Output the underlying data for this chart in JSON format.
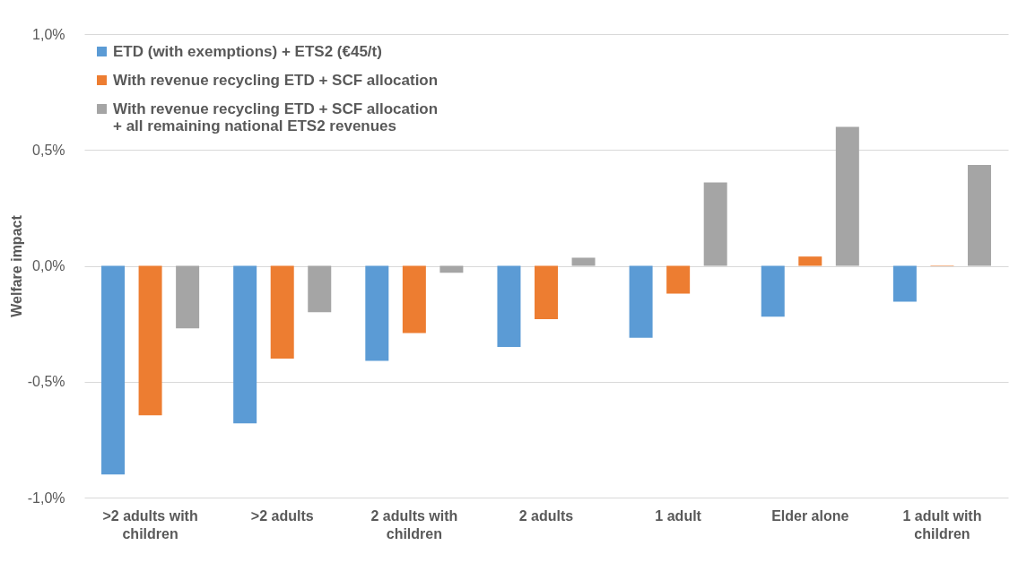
{
  "chart_data": {
    "type": "bar",
    "ylabel": "Welfare impact",
    "categories": [
      ">2 adults with\nchildren",
      ">2 adults",
      "2 adults with\nchildren",
      "2 adults",
      "1 adult",
      "Elder alone",
      "1 adult with\nchildren"
    ],
    "series": [
      {
        "name": "ETD (with exemptions) + ETS2 (€45/t)",
        "color": "#5b9bd5",
        "values": [
          -0.9,
          -0.68,
          -0.41,
          -0.35,
          -0.31,
          -0.22,
          -0.155
        ]
      },
      {
        "name": "With revenue recycling ETD + SCF allocation",
        "color": "#ed7d31",
        "values": [
          -0.645,
          -0.4,
          -0.29,
          -0.23,
          -0.12,
          0.04,
          0.002
        ]
      },
      {
        "name": "With revenue recycling ETD + SCF allocation\n+ all remaining national ETS2 revenues",
        "color": "#a5a5a5",
        "values": [
          -0.27,
          -0.2,
          -0.03,
          0.035,
          0.36,
          0.6,
          0.435
        ]
      }
    ],
    "ylim": [
      -1.0,
      1.0
    ],
    "yticks": [
      {
        "value": -1.0,
        "label": "-1,0%"
      },
      {
        "value": -0.5,
        "label": "-0,5%"
      },
      {
        "value": 0,
        "label": "0,0%"
      },
      {
        "value": 0.5,
        "label": "0,5%"
      },
      {
        "value": 1.0,
        "label": "1,0%"
      }
    ],
    "grid": "y",
    "legend": "top left"
  }
}
